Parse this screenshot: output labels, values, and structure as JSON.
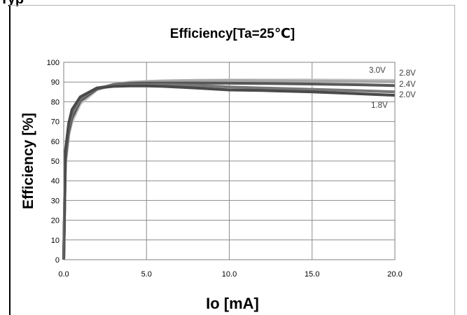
{
  "header_fragment": "Typ",
  "chart_data": {
    "type": "line",
    "title": "Efficiency[Ta=25℃]",
    "xlabel": "Io [mA]",
    "ylabel": "Efficiency [%]",
    "xlim": [
      0,
      20
    ],
    "ylim": [
      0,
      100
    ],
    "xticks": [
      "0.0",
      "5.0",
      "10.0",
      "15.0",
      "20.0"
    ],
    "yticks": [
      "0",
      "10",
      "20",
      "30",
      "40",
      "50",
      "60",
      "70",
      "80",
      "90",
      "100"
    ],
    "grid": true,
    "legend": "none",
    "series": [
      {
        "name": "3.0V",
        "color": "#c4c4c4",
        "points": [
          [
            0,
            0
          ],
          [
            0.1,
            48
          ],
          [
            0.3,
            63
          ],
          [
            0.5,
            70
          ],
          [
            1,
            79
          ],
          [
            2,
            86
          ],
          [
            3,
            88.5
          ],
          [
            4,
            89.8
          ],
          [
            5,
            90.3
          ],
          [
            6,
            90.6
          ],
          [
            8,
            90.9
          ],
          [
            10,
            91
          ],
          [
            12,
            91
          ],
          [
            15,
            91
          ],
          [
            18,
            90.9
          ],
          [
            20,
            90.8
          ]
        ]
      },
      {
        "name": "2.8V",
        "color": "#a8a8a8",
        "points": [
          [
            0,
            0
          ],
          [
            0.1,
            49
          ],
          [
            0.3,
            64
          ],
          [
            0.5,
            71
          ],
          [
            1,
            80
          ],
          [
            2,
            86.5
          ],
          [
            3,
            88.8
          ],
          [
            4,
            89.9
          ],
          [
            5,
            90.2
          ],
          [
            6,
            90.5
          ],
          [
            8,
            90.7
          ],
          [
            10,
            90.8
          ],
          [
            12,
            90.7
          ],
          [
            15,
            90.5
          ],
          [
            18,
            90.3
          ],
          [
            20,
            90.1
          ]
        ]
      },
      {
        "name": "2.4V",
        "color": "#585858",
        "points": [
          [
            0,
            0
          ],
          [
            0.1,
            51
          ],
          [
            0.3,
            65
          ],
          [
            0.5,
            72
          ],
          [
            1,
            80.5
          ],
          [
            2,
            86.5
          ],
          [
            3,
            88.6
          ],
          [
            4,
            89.3
          ],
          [
            5,
            89.5
          ],
          [
            6,
            89.5
          ],
          [
            8,
            89.5
          ],
          [
            10,
            89.4
          ],
          [
            12,
            89.3
          ],
          [
            15,
            89
          ],
          [
            18,
            88.6
          ],
          [
            20,
            88.2
          ]
        ]
      },
      {
        "name": "2.0V",
        "color": "#787878",
        "points": [
          [
            0,
            0
          ],
          [
            0.1,
            53
          ],
          [
            0.3,
            67
          ],
          [
            0.5,
            74
          ],
          [
            1,
            81.5
          ],
          [
            2,
            87
          ],
          [
            3,
            88.3
          ],
          [
            4,
            88.6
          ],
          [
            5,
            88.6
          ],
          [
            6,
            88.6
          ],
          [
            8,
            88.3
          ],
          [
            10,
            87.5
          ],
          [
            12,
            87
          ],
          [
            15,
            86.3
          ],
          [
            18,
            85.6
          ],
          [
            20,
            85
          ]
        ]
      },
      {
        "name": "1.8V",
        "color": "#4a4a4a",
        "points": [
          [
            0,
            0
          ],
          [
            0.1,
            55
          ],
          [
            0.3,
            69
          ],
          [
            0.5,
            76
          ],
          [
            1,
            82.5
          ],
          [
            2,
            87
          ],
          [
            3,
            87.8
          ],
          [
            4,
            88
          ],
          [
            5,
            88
          ],
          [
            6,
            87.8
          ],
          [
            8,
            87
          ],
          [
            10,
            86
          ],
          [
            12,
            85.7
          ],
          [
            15,
            85
          ],
          [
            18,
            84
          ],
          [
            20,
            83.3
          ]
        ]
      }
    ],
    "series_labels": [
      "3.0V",
      "2.8V",
      "2.4V",
      "2.0V",
      "1.8V"
    ]
  }
}
